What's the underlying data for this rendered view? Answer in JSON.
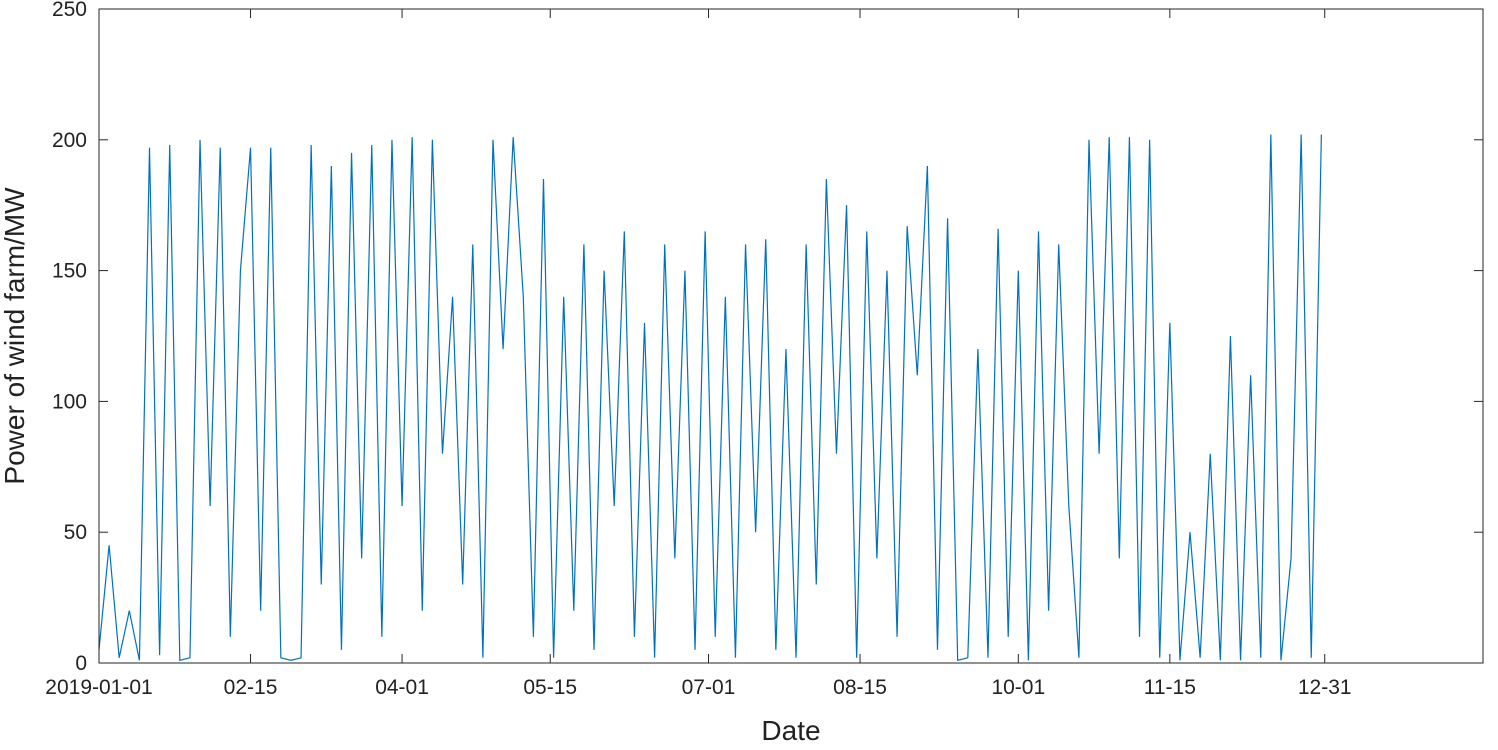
{
  "chart_data": {
    "type": "line",
    "x_label": "Date",
    "y_label": "Power of wind farm/MW",
    "x": [
      0,
      3,
      6,
      9,
      12,
      15,
      18,
      21,
      24,
      27,
      30,
      33,
      36,
      39,
      42,
      45,
      48,
      51,
      54,
      57,
      60,
      63,
      66,
      69,
      72,
      75,
      78,
      81,
      84,
      87,
      90,
      93,
      96,
      99,
      102,
      105,
      108,
      111,
      114,
      117,
      120,
      123,
      126,
      129,
      132,
      135,
      138,
      141,
      144,
      147,
      150,
      153,
      156,
      159,
      162,
      165,
      168,
      171,
      174,
      177,
      180,
      183,
      186,
      189,
      192,
      195,
      198,
      201,
      204,
      207,
      210,
      213,
      216,
      219,
      222,
      225,
      228,
      231,
      234,
      237,
      240,
      243,
      246,
      249,
      252,
      255,
      258,
      261,
      264,
      267,
      270,
      273,
      276,
      279,
      282,
      285,
      288,
      291,
      294,
      297,
      300,
      303,
      306,
      309,
      312,
      315,
      318,
      321,
      324,
      327,
      330,
      333,
      336,
      339,
      342,
      345,
      348,
      351,
      354,
      357,
      360,
      363
    ],
    "series": [
      {
        "color": "#0072bd",
        "values": [
          5,
          45,
          2,
          20,
          1,
          197,
          3,
          198,
          1,
          2,
          200,
          60,
          197,
          10,
          150,
          197,
          20,
          197,
          2,
          1,
          2,
          198,
          30,
          190,
          5,
          195,
          40,
          198,
          10,
          200,
          60,
          201,
          20,
          200,
          80,
          140,
          30,
          160,
          2,
          200,
          120,
          201,
          140,
          10,
          185,
          2,
          140,
          20,
          160,
          5,
          150,
          60,
          165,
          10,
          130,
          2,
          160,
          40,
          150,
          5,
          165,
          10,
          140,
          2,
          160,
          50,
          162,
          5,
          120,
          2,
          160,
          30,
          185,
          80,
          175,
          2,
          165,
          40,
          150,
          10,
          167,
          110,
          190,
          5,
          170,
          1,
          2,
          120,
          2,
          166,
          10,
          150,
          1,
          165,
          20,
          160,
          60,
          2,
          200,
          80,
          201,
          40,
          201,
          10,
          200,
          2,
          130,
          1,
          50,
          2,
          80,
          1,
          125,
          1,
          110,
          2,
          202,
          1,
          40,
          202,
          2,
          202
        ]
      }
    ],
    "xlim": [
      0,
      411
    ],
    "xticks": [
      {
        "value": 0,
        "label": "2019-01-01"
      },
      {
        "value": 45,
        "label": "02-15"
      },
      {
        "value": 90,
        "label": "04-01"
      },
      {
        "value": 134,
        "label": "05-15"
      },
      {
        "value": 181,
        "label": "07-01"
      },
      {
        "value": 226,
        "label": "08-15"
      },
      {
        "value": 273,
        "label": "10-01"
      },
      {
        "value": 318,
        "label": "11-15"
      },
      {
        "value": 364,
        "label": "12-31"
      }
    ],
    "ylim": [
      0,
      250
    ],
    "yticks": [
      0,
      50,
      100,
      150,
      200,
      250
    ],
    "grid": false
  }
}
